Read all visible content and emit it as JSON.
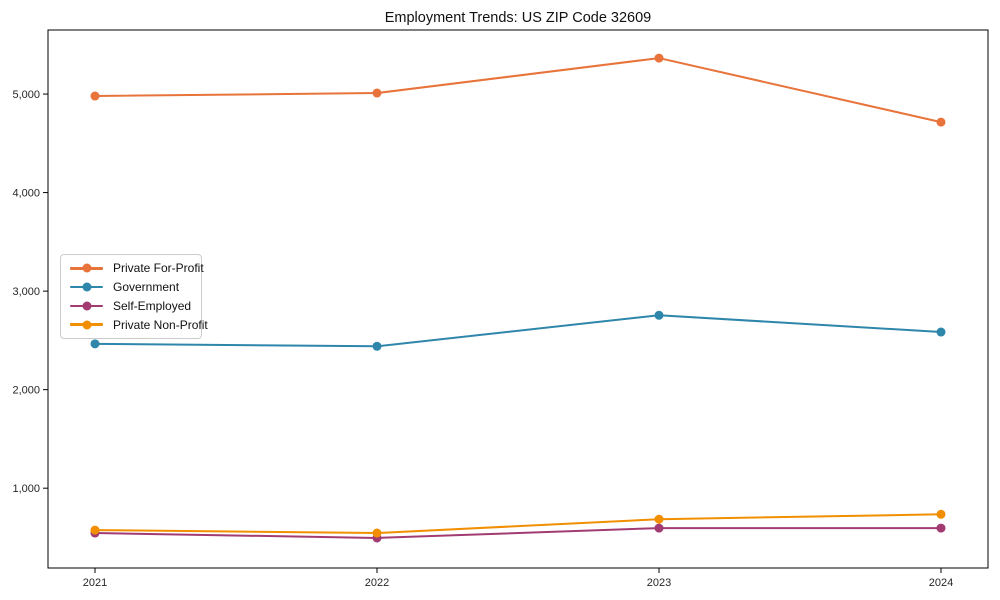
{
  "figure": {
    "title": "Employment Trends: US ZIP Code 32609"
  },
  "chart_data": {
    "type": "line",
    "title": "Employment Trends: US ZIP Code 32609",
    "xlabel": "",
    "ylabel": "",
    "x": [
      2021,
      2022,
      2023,
      2024
    ],
    "xticklabels": [
      "2021",
      "2022",
      "2023",
      "2024"
    ],
    "yticks": [
      1000,
      2000,
      3000,
      4000,
      5000
    ],
    "yticklabels": [
      "1,000",
      "2,000",
      "3,000",
      "4,000",
      "5,000"
    ],
    "ylim": [
      190,
      5650
    ],
    "grid": false,
    "legend_position": "center-left",
    "marker": "circle",
    "series": [
      {
        "name": "Private For-Profit",
        "color": "#E8743B",
        "values": [
          4980,
          5010,
          5365,
          4715
        ]
      },
      {
        "name": "Government",
        "color": "#2E86AB",
        "values": [
          2465,
          2440,
          2755,
          2585
        ]
      },
      {
        "name": "Self-Employed",
        "color": "#A23B72",
        "values": [
          545,
          495,
          595,
          595
        ]
      },
      {
        "name": "Private Non-Profit",
        "color": "#F18F01",
        "values": [
          575,
          545,
          685,
          735
        ]
      }
    ],
    "axis_color": "#000000",
    "tick_label_color": "#262626"
  }
}
